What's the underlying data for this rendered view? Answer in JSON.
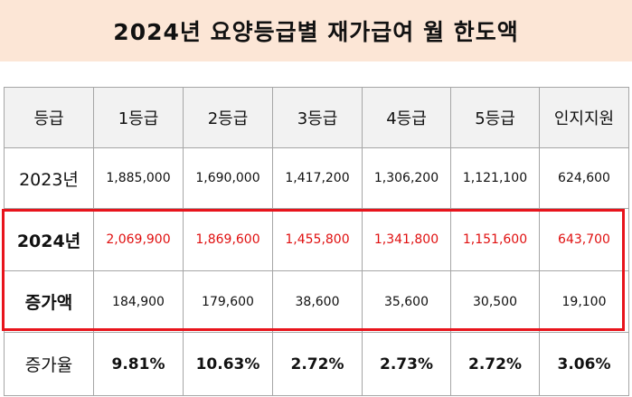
{
  "title": "2024년 요양등급별 재가급여 월 한도액",
  "headers": [
    "등급",
    "1등급",
    "2등급",
    "3등급",
    "4등급",
    "5등급",
    "인지지원"
  ],
  "rows": [
    {
      "label": "2023년",
      "values": [
        "1,885,000",
        "1,690,000",
        "1,417,200",
        "1,306,200",
        "1,121,100",
        "624,600"
      ]
    },
    {
      "label": "2024년",
      "values": [
        "2,069,900",
        "1,869,600",
        "1,455,800",
        "1,341,800",
        "1,151,600",
        "643,700"
      ]
    },
    {
      "label": "증가액",
      "values": [
        "184,900",
        "179,600",
        "38,600",
        "35,600",
        "30,500",
        "19,100"
      ]
    },
    {
      "label": "증가율",
      "values": [
        "9.81%",
        "10.63%",
        "2.72%",
        "2.73%",
        "2.72%",
        "3.06%"
      ]
    }
  ],
  "colors": {
    "title_bg": "#fce6d6",
    "header_bg": "#f2f2f2",
    "highlight": "#e8141c",
    "value_2024": "#e01010"
  }
}
